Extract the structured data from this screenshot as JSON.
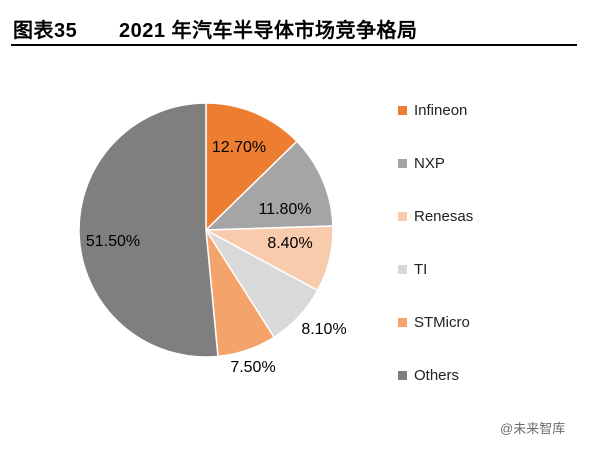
{
  "figure": {
    "label": "图表35",
    "title": "2021 年汽车半导体市场竞争格局"
  },
  "chart_data": {
    "type": "pie",
    "title": "2021 年汽车半导体市场竞争格局",
    "slices": [
      {
        "label": "Infineon",
        "value": 12.7,
        "display": "12.70%",
        "color": "#ED7D31"
      },
      {
        "label": "NXP",
        "value": 11.8,
        "display": "11.80%",
        "color": "#A5A5A5"
      },
      {
        "label": "Renesas",
        "value": 8.4,
        "display": "8.40%",
        "color": "#F8CBAD"
      },
      {
        "label": "TI",
        "value": 8.1,
        "display": "8.10%",
        "color": "#D9D9D9"
      },
      {
        "label": "STMicro",
        "value": 7.5,
        "display": "7.50%",
        "color": "#F4A46B"
      },
      {
        "label": "Others",
        "value": 51.5,
        "display": "51.50%",
        "color": "#7F7F7F"
      }
    ],
    "legend_position": "right"
  },
  "watermark": "@未来智库"
}
